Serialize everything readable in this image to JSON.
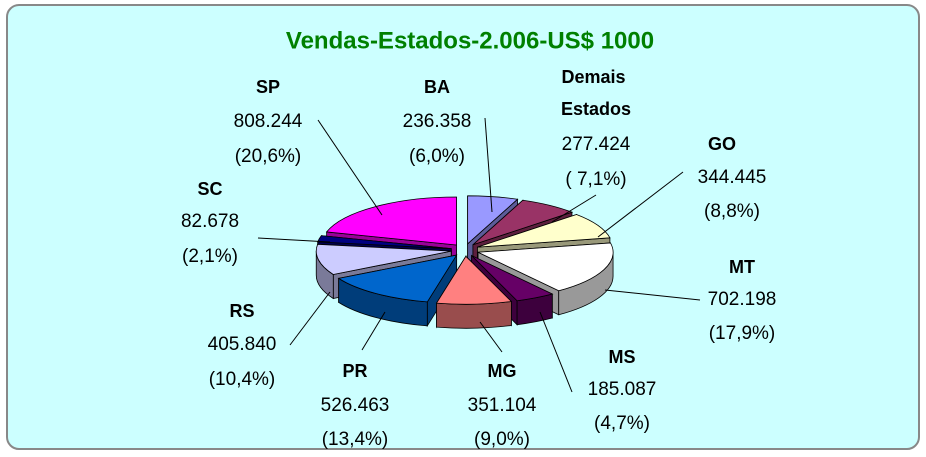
{
  "chart_data": {
    "type": "pie",
    "title": "Vendas-Estados-2.006-US$ 1000",
    "categories": [
      "BA",
      "Demais Estados",
      "GO",
      "MT",
      "MS",
      "MG",
      "PR",
      "RS",
      "SC",
      "SP"
    ],
    "values": [
      236358,
      277424,
      344445,
      702198,
      185087,
      351104,
      526463,
      405840,
      82678,
      808244
    ],
    "value_labels": [
      "236.358",
      "277.424",
      "344.445",
      "702.198",
      "185.087",
      "351.104",
      "526.463",
      "405.840",
      "82.678",
      "808.244"
    ],
    "percent_labels": [
      "(6,0%)",
      "( 7,1%)",
      "(8,8%)",
      "(17,9%)",
      "(4,7%)",
      "(9,0%)",
      "(13,4%)",
      "(10,4%)",
      "(2,1%)",
      "(20,6%)"
    ],
    "colors": [
      "#9999ff",
      "#993366",
      "#ffffcc",
      "#ffffff",
      "#660066",
      "#ff8080",
      "#0066cc",
      "#ccccff",
      "#000080",
      "#ff00ff"
    ]
  }
}
